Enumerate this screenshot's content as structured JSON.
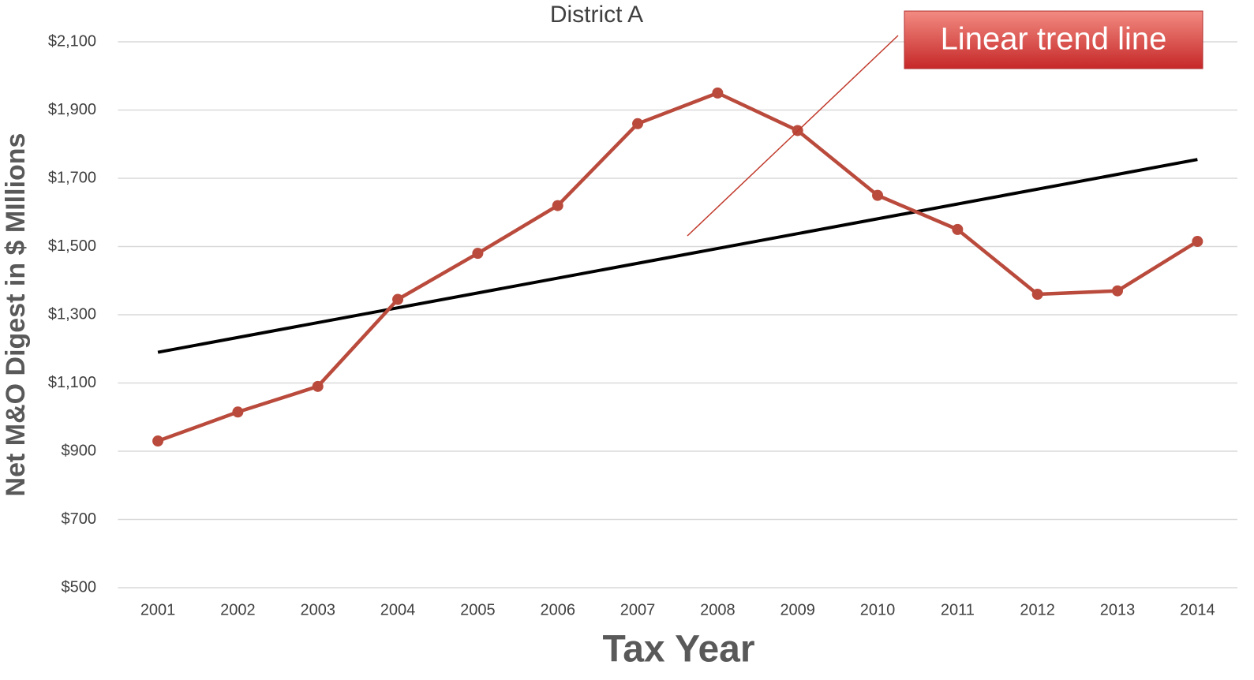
{
  "chart_data": {
    "type": "line",
    "title": "District A",
    "x_label": "Tax Year",
    "y_label": "Net M&O Digest in $ MIllions",
    "categories": [
      "2001",
      "2002",
      "2003",
      "2004",
      "2005",
      "2006",
      "2007",
      "2008",
      "2009",
      "2010",
      "2011",
      "2012",
      "2013",
      "2014"
    ],
    "series": [
      {
        "color": "#b94a3c",
        "values": [
          930,
          1015,
          1090,
          1345,
          1480,
          1620,
          1860,
          1950,
          1840,
          1650,
          1550,
          1360,
          1370,
          1515
        ]
      }
    ],
    "trend_line": {
      "color": "#000000",
      "values": [
        1190,
        1755
      ]
    },
    "annotation": "Linear trend line",
    "ylim": [
      500,
      2100
    ],
    "yticks": [
      {
        "value": 500,
        "label": "$500"
      },
      {
        "value": 700,
        "label": "$700"
      },
      {
        "value": 900,
        "label": "$900"
      },
      {
        "value": 1100,
        "label": "$1,100"
      },
      {
        "value": 1300,
        "label": "$1,300"
      },
      {
        "value": 1500,
        "label": "$1,500"
      },
      {
        "value": 1700,
        "label": "$1,700"
      },
      {
        "value": 1900,
        "label": "$1,900"
      },
      {
        "value": 2100,
        "label": "$2,100"
      }
    ],
    "grid": true
  }
}
